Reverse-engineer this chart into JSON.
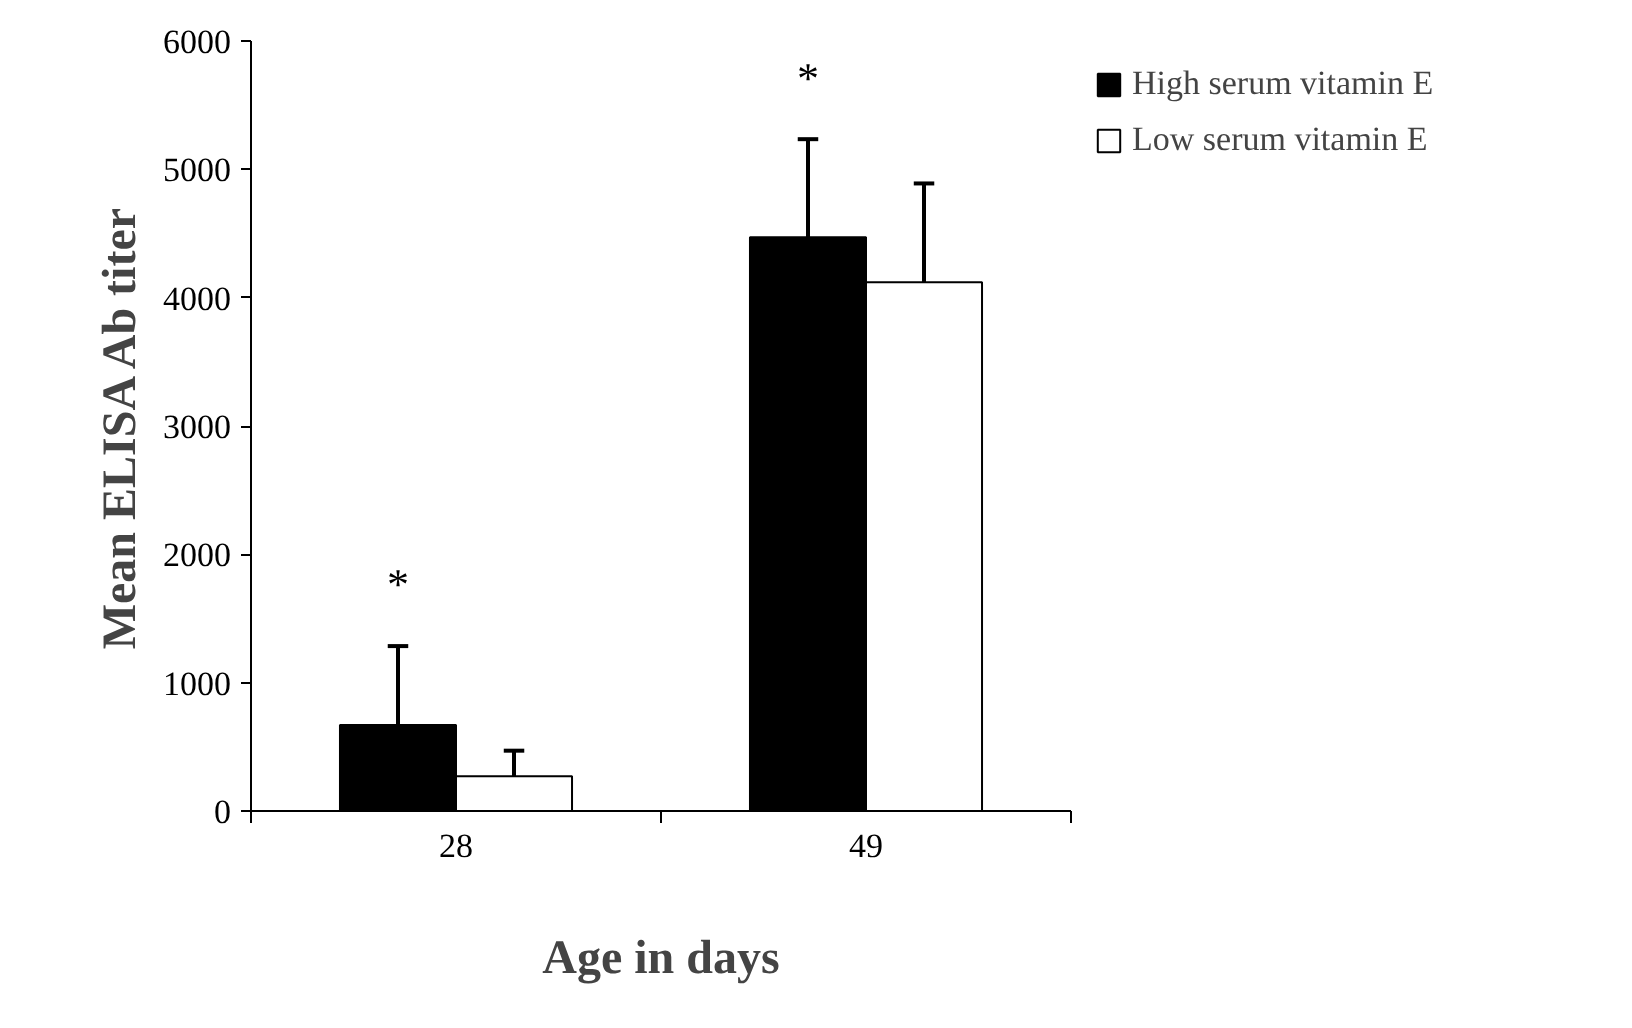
{
  "chart_data": {
    "type": "bar",
    "xlabel": "Age in days",
    "ylabel": "Mean ELISA Ab titer",
    "categories": [
      "28",
      "49"
    ],
    "series": [
      {
        "name": "High serum vitamin E",
        "color": "#000000",
        "values": [
          670,
          4470
        ],
        "errors": [
          [
            670,
            1285
          ],
          [
            4470,
            5235
          ]
        ]
      },
      {
        "name": "Low serum vitamin E",
        "color": "#ffffff",
        "values": [
          270,
          4120
        ],
        "errors": [
          [
            270,
            470
          ],
          [
            4120,
            4890
          ]
        ]
      }
    ],
    "ylim": [
      0,
      6000
    ],
    "yticks": [
      0,
      1000,
      2000,
      3000,
      4000,
      5000,
      6000
    ],
    "grid": false,
    "legend": "top right",
    "annotations": [
      "*",
      "*"
    ]
  }
}
